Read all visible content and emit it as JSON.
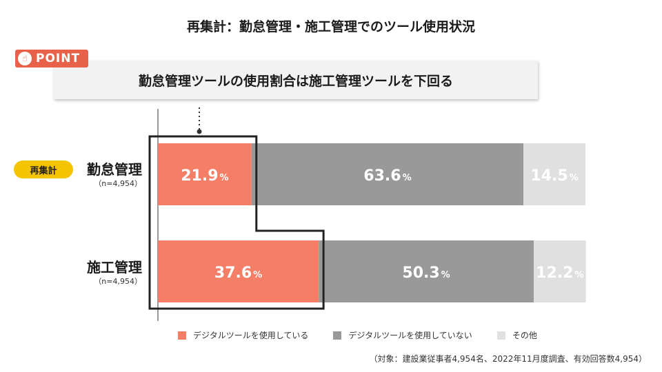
{
  "title": "再集計：勤怠管理・施工管理でのツール使用状況",
  "point": {
    "badge_label": "POINT",
    "icon": "pointing-hand-icon",
    "message": "勤怠管理ツールの使用割合は施工管理ツールを下回る"
  },
  "reaggregation_badge": "再集計",
  "colors": {
    "uses": "#f57e67",
    "not_uses": "#999999",
    "other": "#e0e0e0",
    "badge_yellow": "#f5c400",
    "point_red": "#e8624a"
  },
  "chart_data": {
    "type": "bar",
    "orientation": "horizontal",
    "stacked": true,
    "unit": "%",
    "xlim": [
      0,
      100
    ],
    "categories": [
      {
        "label": "勤怠管理",
        "n": "（n=4,954）"
      },
      {
        "label": "施工管理",
        "n": "（n=4,954）"
      }
    ],
    "series": [
      {
        "name": "デジタルツールを使用している",
        "values": [
          21.9,
          37.6
        ]
      },
      {
        "name": "デジタルツールを使用していない",
        "values": [
          63.6,
          50.3
        ]
      },
      {
        "name": "その他",
        "values": [
          14.5,
          12.2
        ]
      }
    ],
    "legend_position": "bottom"
  },
  "footnote": "（対象：建設業従事者4,954名、2022年11月度調査、有効回答数4,954）"
}
